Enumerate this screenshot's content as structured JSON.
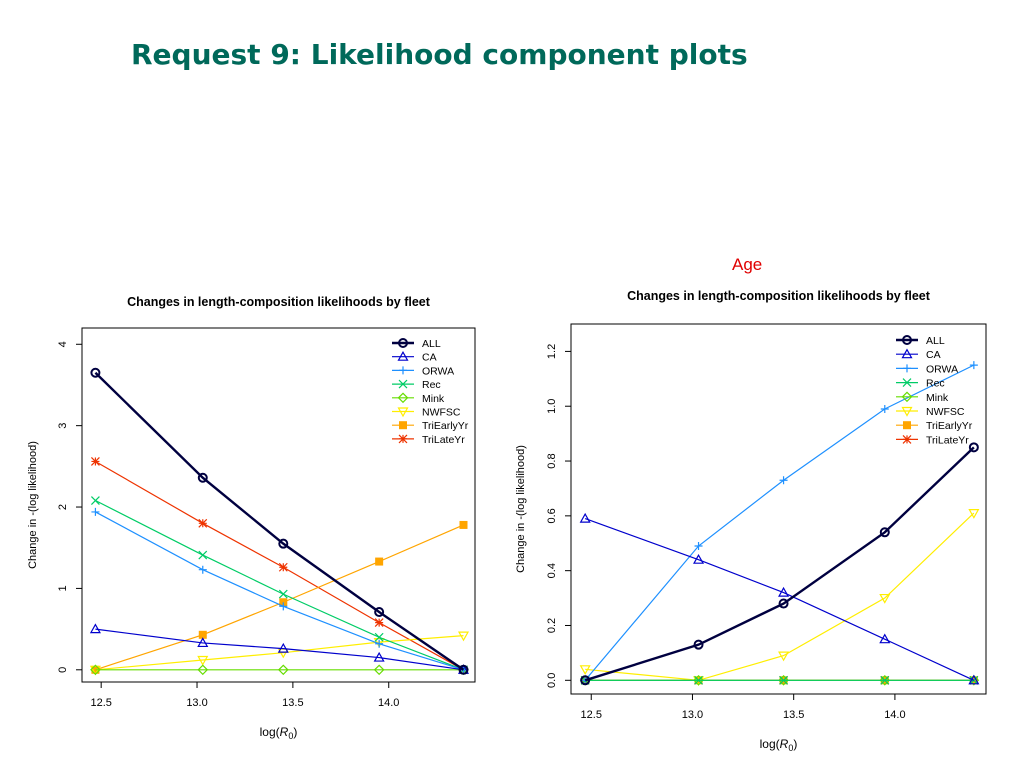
{
  "slide": {
    "title": "Request 9: Likelihood component plots",
    "age_label": "Age"
  },
  "chart_data": [
    {
      "type": "line",
      "title": "Changes in length-composition likelihoods by fleet",
      "xlabel": "log(R0)",
      "ylabel": "Change in -(log likelihood)",
      "xlim": [
        12.4,
        14.45
      ],
      "ylim": [
        -0.15,
        4.2
      ],
      "xticks": [
        "12.5",
        "13.0",
        "13.5",
        "14.0"
      ],
      "xtick_values": [
        12.5,
        13.0,
        13.5,
        14.0
      ],
      "yticks": [
        "0",
        "1",
        "2",
        "3",
        "4"
      ],
      "ytick_values": [
        0,
        1,
        2,
        3,
        4
      ],
      "legend_position": "top-right",
      "x": [
        12.47,
        13.03,
        13.45,
        13.95,
        14.39
      ],
      "series": [
        {
          "name": "ALL",
          "color": "#000040",
          "marker": "circle",
          "width": 2.4,
          "values": [
            3.65,
            2.36,
            1.55,
            0.71,
            0.0
          ]
        },
        {
          "name": "CA",
          "color": "#0000cc",
          "marker": "triangle",
          "width": 1.2,
          "values": [
            0.5,
            0.33,
            0.26,
            0.15,
            0.0
          ]
        },
        {
          "name": "ORWA",
          "color": "#1e90ff",
          "marker": "plus",
          "width": 1.2,
          "values": [
            1.94,
            1.23,
            0.78,
            0.32,
            0.0
          ]
        },
        {
          "name": "Rec",
          "color": "#00cc66",
          "marker": "cross",
          "width": 1.2,
          "values": [
            2.08,
            1.41,
            0.93,
            0.4,
            0.0
          ]
        },
        {
          "name": "Mink",
          "color": "#66dd00",
          "marker": "diamond",
          "width": 1.2,
          "values": [
            0.0,
            0.0,
            0.0,
            0.0,
            0.0
          ]
        },
        {
          "name": "NWFSC",
          "color": "#ffee00",
          "marker": "triangle-down",
          "width": 1.2,
          "values": [
            0.0,
            0.12,
            0.21,
            0.34,
            0.42
          ]
        },
        {
          "name": "TriEarlyYr",
          "color": "#ffa500",
          "marker": "square",
          "width": 1.2,
          "values": [
            0.0,
            0.43,
            0.83,
            1.33,
            1.78
          ]
        },
        {
          "name": "TriLateYr",
          "color": "#ee3300",
          "marker": "asterisk",
          "width": 1.2,
          "values": [
            2.56,
            1.8,
            1.26,
            0.58,
            0.0
          ]
        }
      ]
    },
    {
      "type": "line",
      "title": "Changes in length-composition likelihoods by fleet",
      "xlabel": "log(R0)",
      "ylabel": "Change in -(log likelihood)",
      "xlim": [
        12.4,
        14.45
      ],
      "ylim": [
        -0.05,
        1.3
      ],
      "xticks": [
        "12.5",
        "13.0",
        "13.5",
        "14.0"
      ],
      "xtick_values": [
        12.5,
        13.0,
        13.5,
        14.0
      ],
      "yticks": [
        "0.0",
        "0.2",
        "0.4",
        "0.6",
        "0.8",
        "1.0",
        "1.2"
      ],
      "ytick_values": [
        0.0,
        0.2,
        0.4,
        0.6,
        0.8,
        1.0,
        1.2
      ],
      "legend_position": "top-right",
      "x": [
        12.47,
        13.03,
        13.45,
        13.95,
        14.39
      ],
      "series": [
        {
          "name": "ALL",
          "color": "#000040",
          "marker": "circle",
          "width": 2.4,
          "values": [
            0.0,
            0.13,
            0.28,
            0.54,
            0.85
          ]
        },
        {
          "name": "CA",
          "color": "#0000cc",
          "marker": "triangle",
          "width": 1.2,
          "values": [
            0.59,
            0.44,
            0.32,
            0.15,
            0.0
          ]
        },
        {
          "name": "ORWA",
          "color": "#1e90ff",
          "marker": "plus",
          "width": 1.2,
          "values": [
            0.0,
            0.49,
            0.73,
            0.99,
            1.15
          ]
        },
        {
          "name": "Rec",
          "color": "#00cc66",
          "marker": "cross",
          "width": 1.2,
          "values": [
            0.0,
            0.0,
            0.0,
            0.0,
            0.0
          ]
        },
        {
          "name": "Mink",
          "color": "#66dd00",
          "marker": "diamond",
          "width": 1.2,
          "values": [
            0.0,
            0.0,
            0.0,
            0.0,
            0.0
          ]
        },
        {
          "name": "NWFSC",
          "color": "#ffee00",
          "marker": "triangle-down",
          "width": 1.2,
          "values": [
            0.04,
            0.0,
            0.09,
            0.3,
            0.61
          ]
        },
        {
          "name": "TriEarlyYr",
          "color": "#ffa500",
          "marker": "square",
          "width": 1.2,
          "values": [
            0.0,
            0.0,
            0.0,
            0.0,
            0.0
          ]
        },
        {
          "name": "TriLateYr",
          "color": "#ee3300",
          "marker": "asterisk",
          "width": 1.2,
          "values": [
            0.0,
            0.0,
            0.0,
            0.0,
            0.0
          ]
        }
      ]
    }
  ]
}
